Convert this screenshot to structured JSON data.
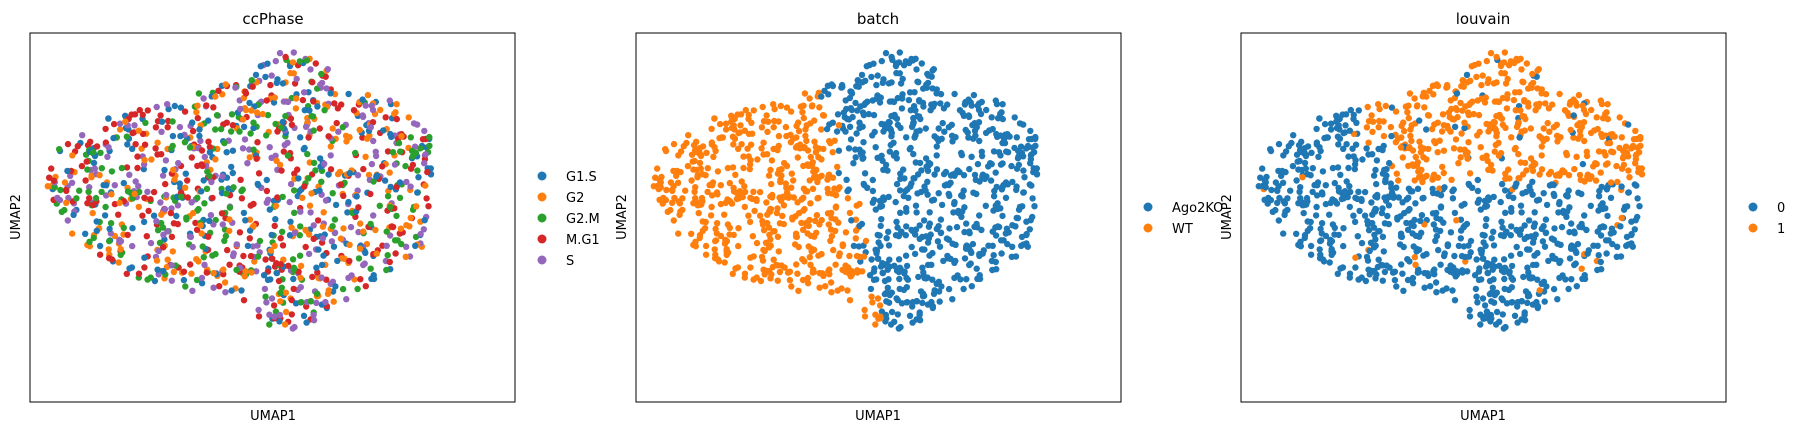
{
  "panels": [
    {
      "title": "ccPhase",
      "xlabel": "UMAP1",
      "ylabel": "UMAP2",
      "legend": [
        {
          "label": "G1.S",
          "color": "#1f77b4"
        },
        {
          "label": "G2",
          "color": "#ff7f0e"
        },
        {
          "label": "G2.M",
          "color": "#2ca02c"
        },
        {
          "label": "M.G1",
          "color": "#d62728"
        },
        {
          "label": "S",
          "color": "#9467bd"
        }
      ]
    },
    {
      "title": "batch",
      "xlabel": "UMAP1",
      "ylabel": "UMAP2",
      "legend": [
        {
          "label": "Ago2KO",
          "color": "#1f77b4"
        },
        {
          "label": "WT",
          "color": "#ff7f0e"
        }
      ]
    },
    {
      "title": "louvain",
      "xlabel": "UMAP1",
      "ylabel": "UMAP2",
      "legend": [
        {
          "label": "0",
          "color": "#1f77b4"
        },
        {
          "label": "1",
          "color": "#ff7f0e"
        }
      ]
    }
  ],
  "chart_data": [
    {
      "type": "scatter",
      "title": "ccPhase",
      "xlabel": "UMAP1",
      "ylabel": "UMAP2",
      "ticks": "none",
      "legend_position": "right",
      "grid": false,
      "series": [
        {
          "name": "G1.S",
          "color": "#1f77b4"
        },
        {
          "name": "G2",
          "color": "#ff7f0e"
        },
        {
          "name": "G2.M",
          "color": "#2ca02c"
        },
        {
          "name": "M.G1",
          "color": "#d62728"
        },
        {
          "name": "S",
          "color": "#9467bd"
        }
      ]
    },
    {
      "type": "scatter",
      "title": "batch",
      "xlabel": "UMAP1",
      "ylabel": "UMAP2",
      "ticks": "none",
      "legend_position": "right",
      "grid": false,
      "series": [
        {
          "name": "Ago2KO",
          "color": "#1f77b4"
        },
        {
          "name": "WT",
          "color": "#ff7f0e"
        }
      ]
    },
    {
      "type": "scatter",
      "title": "louvain",
      "xlabel": "UMAP1",
      "ylabel": "UMAP2",
      "ticks": "none",
      "legend_position": "right",
      "grid": false,
      "series": [
        {
          "name": "0",
          "color": "#1f77b4"
        },
        {
          "name": "1",
          "color": "#ff7f0e"
        }
      ]
    }
  ]
}
